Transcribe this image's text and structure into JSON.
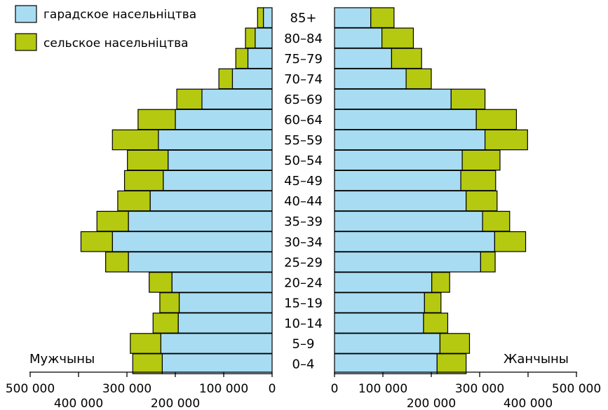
{
  "chart_data": {
    "type": "bar",
    "orientation": "horizontal",
    "stacked": true,
    "layout": "population-pyramid",
    "categories": [
      "85+",
      "80–84",
      "75–79",
      "70–74",
      "65–69",
      "60–64",
      "55–59",
      "50–54",
      "45–49",
      "40–44",
      "35–39",
      "30–34",
      "25–29",
      "20–24",
      "15–19",
      "10–14",
      "5–9",
      "0–4"
    ],
    "panels": [
      {
        "name": "Мужчыны",
        "direction": "left",
        "series": [
          {
            "name": "гарадское насельніцтва",
            "values": [
              18000,
              35000,
              50000,
              82000,
              145000,
              200000,
              235000,
              215000,
              225000,
              252000,
              297000,
              330000,
              297000,
              207000,
              192000,
              194000,
              230000,
              227000
            ]
          },
          {
            "name": "сельское насельніцтва",
            "values": [
              12000,
              20000,
              25000,
              28000,
              52000,
              77000,
              95000,
              84000,
              80000,
              67000,
              65000,
              65000,
              47000,
              47000,
              40000,
              52000,
              63000,
              61000
            ]
          }
        ]
      },
      {
        "name": "Жанчыны",
        "direction": "right",
        "series": [
          {
            "name": "гарадское насельніцтва",
            "values": [
              75000,
              98000,
              118000,
              148000,
              241000,
              293000,
              311000,
              264000,
              261000,
              272000,
              306000,
              331000,
              302000,
              201000,
              186000,
              184000,
              218000,
              212000
            ]
          },
          {
            "name": "сельское насельніцтва",
            "values": [
              48000,
              65000,
              62000,
              52000,
              70000,
              83000,
              88000,
              78000,
              72000,
              64000,
              56000,
              64000,
              30000,
              37000,
              34000,
              50000,
              61000,
              60000
            ]
          }
        ]
      }
    ],
    "colors": {
      "urban": "#a8dcf2",
      "rural": "#b5c910"
    },
    "xlim": [
      0,
      500000
    ],
    "left_axis_ticks_top": [
      {
        "value": 500000,
        "label": "500 000"
      },
      {
        "value": 300000,
        "label": "300 000"
      },
      {
        "value": 100000,
        "label": "100 000"
      },
      {
        "value": 0,
        "label": "0"
      }
    ],
    "left_axis_ticks_bottom": [
      {
        "value": 400000,
        "label": "400 000"
      },
      {
        "value": 200000,
        "label": "200 000"
      }
    ],
    "right_axis_ticks_top": [
      {
        "value": 0,
        "label": "0"
      },
      {
        "value": 100000,
        "label": "100 000"
      },
      {
        "value": 300000,
        "label": "300 000"
      },
      {
        "value": 500000,
        "label": "500 000"
      }
    ],
    "right_axis_ticks_bottom": [
      {
        "value": 200000,
        "label": "200 000"
      },
      {
        "value": 400000,
        "label": "400 000"
      }
    ],
    "legend": {
      "placement": "top-left",
      "items": [
        {
          "name": "гарадское насельніцтва",
          "color": "#a8dcf2"
        },
        {
          "name": "сельское насельніцтва",
          "color": "#b5c910"
        }
      ]
    },
    "grid": false
  }
}
